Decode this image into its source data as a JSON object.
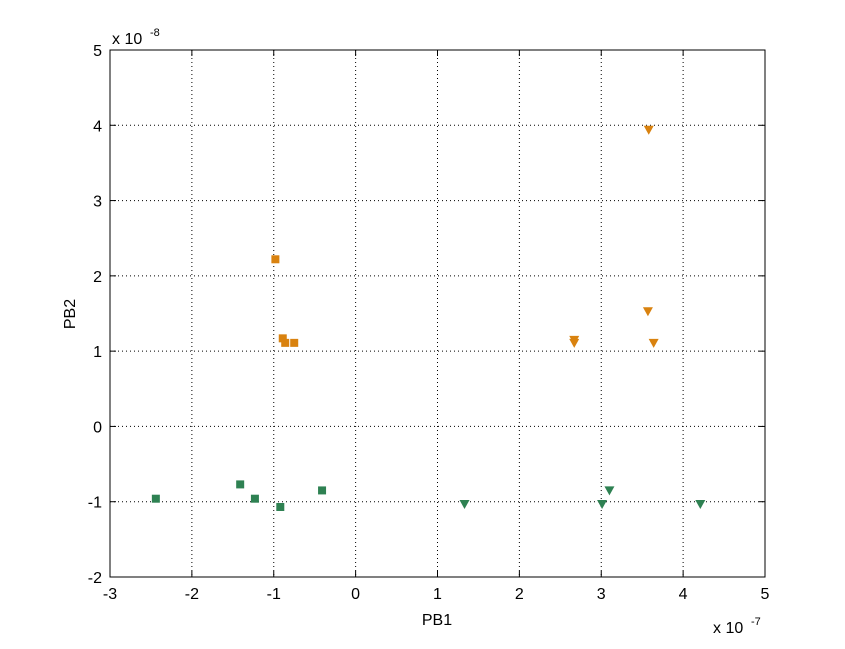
{
  "chart_data": {
    "type": "scatter",
    "xlabel": "PB1",
    "ylabel": "PB2",
    "x_multiplier": {
      "base": "x 10",
      "exponent": "-7"
    },
    "y_multiplier": {
      "base": "x 10",
      "exponent": "-8"
    },
    "xlim": [
      -3,
      5
    ],
    "ylim": [
      -2,
      5
    ],
    "xticks": [
      "-3",
      "-2",
      "-1",
      "0",
      "1",
      "2",
      "3",
      "4",
      "5"
    ],
    "yticks": [
      "-2",
      "-1",
      "0",
      "1",
      "2",
      "3",
      "4",
      "5"
    ],
    "grid": true,
    "series": [
      {
        "marker": "square",
        "color": "#d9820f",
        "points": [
          {
            "x": -0.98,
            "y": 2.22
          },
          {
            "x": -0.89,
            "y": 1.17
          },
          {
            "x": -0.86,
            "y": 1.11
          },
          {
            "x": -0.75,
            "y": 1.11
          }
        ]
      },
      {
        "marker": "triangle-down",
        "color": "#d9820f",
        "points": [
          {
            "x": 3.58,
            "y": 3.94
          },
          {
            "x": 3.57,
            "y": 1.53
          },
          {
            "x": 3.64,
            "y": 1.11
          },
          {
            "x": 2.67,
            "y": 1.15
          },
          {
            "x": 2.67,
            "y": 1.11
          }
        ]
      },
      {
        "marker": "square",
        "color": "#2e8152",
        "points": [
          {
            "x": -2.44,
            "y": -0.96
          },
          {
            "x": -1.41,
            "y": -0.77
          },
          {
            "x": -1.23,
            "y": -0.96
          },
          {
            "x": -0.92,
            "y": -1.07
          },
          {
            "x": -0.41,
            "y": -0.85
          }
        ]
      },
      {
        "marker": "triangle-down",
        "color": "#2e8152",
        "points": [
          {
            "x": 1.33,
            "y": -1.03
          },
          {
            "x": 3.01,
            "y": -1.03
          },
          {
            "x": 3.1,
            "y": -0.85
          },
          {
            "x": 4.21,
            "y": -1.03
          }
        ]
      }
    ]
  }
}
